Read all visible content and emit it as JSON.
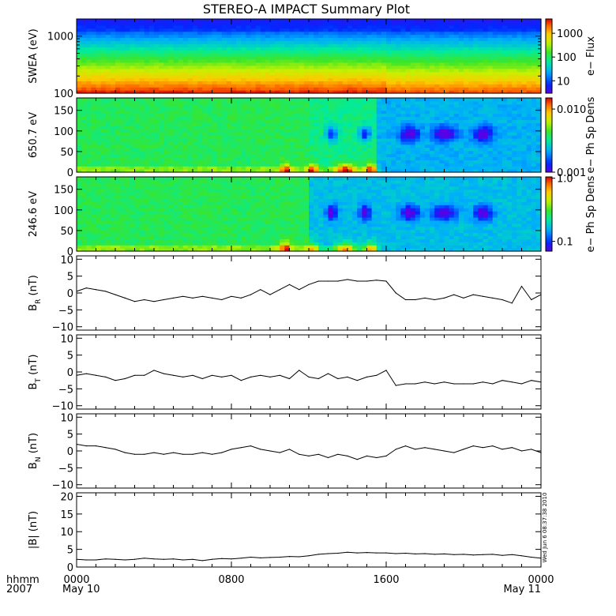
{
  "chart_data": {
    "title": "STEREO-A IMPACT Summary Plot",
    "x_axis": {
      "corner_labels": [
        "hhmm",
        "2007"
      ],
      "tick_hours": [
        0,
        8,
        16,
        24
      ],
      "tick_labels": [
        "0000",
        "0800",
        "1600",
        "0000"
      ],
      "date_labels": [
        "May 10",
        "",
        "",
        "May 11"
      ],
      "range_hours": [
        0,
        24
      ]
    },
    "panels": [
      {
        "id": "swea",
        "type": "heatmap",
        "ylabel": "SWEA (eV)",
        "ylog": true,
        "ylim": [
          100,
          2000
        ],
        "yticks": [
          100,
          1000
        ],
        "ytick_labels": [
          "100",
          "1000"
        ],
        "colorbar": {
          "label": "e−  Flux",
          "log": true,
          "range": [
            3,
            4000
          ],
          "ticks": [
            10,
            100,
            1000
          ],
          "tick_labels": [
            "10",
            "100",
            "1000"
          ]
        },
        "description_values": {
          "energy_ev": [
            100,
            150,
            250,
            400,
            650,
            1000,
            1500,
            2000
          ],
          "flux_profile": [
            3000,
            2000,
            800,
            250,
            90,
            25,
            8,
            5
          ]
        }
      },
      {
        "id": "pad650",
        "type": "heatmap",
        "ylabel": "650.7  eV",
        "ylim": [
          0,
          180
        ],
        "yticks": [
          0,
          50,
          100,
          150
        ],
        "ytick_labels": [
          "0",
          "50",
          "100",
          "150"
        ],
        "colorbar": {
          "label": "e−  Ph Sp Dens",
          "log": true,
          "range": [
            0.001,
            0.015
          ],
          "ticks": [
            0.001,
            0.01
          ],
          "tick_labels": [
            "0.001",
            "0.010"
          ]
        }
      },
      {
        "id": "pad246",
        "type": "heatmap",
        "ylabel": "246.6  eV",
        "ylim": [
          0,
          180
        ],
        "yticks": [
          0,
          50,
          100,
          150
        ],
        "ytick_labels": [
          "0",
          "50",
          "100",
          "150"
        ],
        "colorbar": {
          "label": "e−  Ph Sp Dens",
          "log": true,
          "range": [
            0.07,
            1.05
          ],
          "ticks": [
            0.1,
            1.0
          ],
          "tick_labels": [
            "0.1",
            "1.0"
          ]
        }
      },
      {
        "id": "br",
        "type": "line",
        "ylabel": "B",
        "ylabel_sub": "R",
        "ylabel_unit": " (nT)",
        "ylim": [
          -11,
          11
        ],
        "yticks": [
          -10,
          -5,
          0,
          5,
          10
        ],
        "ytick_labels": [
          "−10",
          "−5",
          "0",
          "5",
          "10"
        ],
        "x": [
          0,
          0.5,
          1,
          1.5,
          2,
          2.5,
          3,
          3.5,
          4,
          4.5,
          5,
          5.5,
          6,
          6.5,
          7,
          7.5,
          8,
          8.5,
          9,
          9.5,
          10,
          10.5,
          11,
          11.5,
          12,
          12.5,
          13,
          13.5,
          14,
          14.5,
          15,
          15.5,
          16,
          16.5,
          17,
          17.5,
          18,
          18.5,
          19,
          19.5,
          20,
          20.5,
          21,
          21.5,
          22,
          22.5,
          23,
          23.5,
          24
        ],
        "y": [
          0.5,
          1.5,
          1.0,
          0.5,
          -0.5,
          -1.5,
          -2.5,
          -2.0,
          -2.5,
          -2.0,
          -1.5,
          -1.0,
          -1.5,
          -1.0,
          -1.5,
          -2.0,
          -1.0,
          -1.5,
          -0.5,
          1.0,
          -0.5,
          1.0,
          2.5,
          1.0,
          2.5,
          3.5,
          3.5,
          3.5,
          4.0,
          3.5,
          3.5,
          3.8,
          3.5,
          0.0,
          -2.0,
          -2.0,
          -1.5,
          -2.0,
          -1.5,
          -0.5,
          -1.5,
          -0.5,
          -1.0,
          -1.5,
          -2.0,
          -3.0,
          2.0,
          -2.0,
          -0.5
        ]
      },
      {
        "id": "bt",
        "type": "line",
        "ylabel": "B",
        "ylabel_sub": "T",
        "ylabel_unit": " (nT)",
        "ylim": [
          -11,
          11
        ],
        "yticks": [
          -10,
          -5,
          0,
          5,
          10
        ],
        "ytick_labels": [
          "−10",
          "−5",
          "0",
          "5",
          "10"
        ],
        "x": [
          0,
          0.5,
          1,
          1.5,
          2,
          2.5,
          3,
          3.5,
          4,
          4.5,
          5,
          5.5,
          6,
          6.5,
          7,
          7.5,
          8,
          8.5,
          9,
          9.5,
          10,
          10.5,
          11,
          11.5,
          12,
          12.5,
          13,
          13.5,
          14,
          14.5,
          15,
          15.5,
          16,
          16.5,
          17,
          17.5,
          18,
          18.5,
          19,
          19.5,
          20,
          20.5,
          21,
          21.5,
          22,
          22.5,
          23,
          23.5,
          24
        ],
        "y": [
          -1.0,
          -0.5,
          -1.0,
          -1.5,
          -2.5,
          -2.0,
          -1.0,
          -1.0,
          0.5,
          -0.5,
          -1.0,
          -1.5,
          -1.0,
          -2.0,
          -1.0,
          -1.5,
          -1.0,
          -2.5,
          -1.5,
          -1.0,
          -1.5,
          -1.0,
          -2.0,
          0.5,
          -1.5,
          -2.0,
          -0.5,
          -2.0,
          -1.5,
          -2.5,
          -1.5,
          -1.0,
          0.5,
          -4.0,
          -3.5,
          -3.5,
          -3.0,
          -3.5,
          -3.0,
          -3.5,
          -3.5,
          -3.5,
          -3.0,
          -3.5,
          -2.5,
          -3.0,
          -3.5,
          -2.5,
          -3.0
        ]
      },
      {
        "id": "bn",
        "type": "line",
        "ylabel": "B",
        "ylabel_sub": "N",
        "ylabel_unit": " (nT)",
        "ylim": [
          -11,
          11
        ],
        "yticks": [
          -10,
          -5,
          0,
          5,
          10
        ],
        "ytick_labels": [
          "−10",
          "−5",
          "0",
          "5",
          "10"
        ],
        "x": [
          0,
          0.5,
          1,
          1.5,
          2,
          2.5,
          3,
          3.5,
          4,
          4.5,
          5,
          5.5,
          6,
          6.5,
          7,
          7.5,
          8,
          8.5,
          9,
          9.5,
          10,
          10.5,
          11,
          11.5,
          12,
          12.5,
          13,
          13.5,
          14,
          14.5,
          15,
          15.5,
          16,
          16.5,
          17,
          17.5,
          18,
          18.5,
          19,
          19.5,
          20,
          20.5,
          21,
          21.5,
          22,
          22.5,
          23,
          23.5,
          24
        ],
        "y": [
          2.0,
          1.5,
          1.5,
          1.0,
          0.5,
          -0.5,
          -1.0,
          -1.0,
          -0.5,
          -1.0,
          -0.5,
          -1.0,
          -1.0,
          -0.5,
          -1.0,
          -0.5,
          0.5,
          1.0,
          1.5,
          0.5,
          0.0,
          -0.5,
          0.5,
          -1.0,
          -1.5,
          -1.0,
          -2.0,
          -1.0,
          -1.5,
          -2.5,
          -1.5,
          -2.0,
          -1.5,
          0.5,
          1.5,
          0.5,
          1.0,
          0.5,
          0.0,
          -0.5,
          0.5,
          1.5,
          1.0,
          1.5,
          0.5,
          1.0,
          0.0,
          0.5,
          -0.5
        ]
      },
      {
        "id": "bmag",
        "type": "line",
        "ylabel": "|B|",
        "ylabel_sub": "",
        "ylabel_unit": " (nT)",
        "ylim": [
          0,
          21
        ],
        "yticks": [
          0,
          5,
          10,
          15,
          20
        ],
        "ytick_labels": [
          "0",
          "5",
          "10",
          "15",
          "20"
        ],
        "side_note": "Wed Jun  6 08:37:38 2010",
        "x": [
          0,
          0.5,
          1,
          1.5,
          2,
          2.5,
          3,
          3.5,
          4,
          4.5,
          5,
          5.5,
          6,
          6.5,
          7,
          7.5,
          8,
          8.5,
          9,
          9.5,
          10,
          10.5,
          11,
          11.5,
          12,
          12.5,
          13,
          13.5,
          14,
          14.5,
          15,
          15.5,
          16,
          16.5,
          17,
          17.5,
          18,
          18.5,
          19,
          19.5,
          20,
          20.5,
          21,
          21.5,
          22,
          22.5,
          23,
          23.5,
          24
        ],
        "y": [
          2.2,
          2.0,
          2.0,
          2.3,
          2.2,
          2.0,
          2.2,
          2.5,
          2.3,
          2.2,
          2.3,
          2.0,
          2.2,
          1.8,
          2.2,
          2.4,
          2.3,
          2.5,
          2.8,
          2.6,
          2.7,
          2.8,
          3.0,
          2.9,
          3.2,
          3.6,
          3.8,
          3.9,
          4.2,
          4.0,
          4.1,
          4.0,
          4.0,
          3.8,
          3.9,
          3.7,
          3.8,
          3.6,
          3.7,
          3.5,
          3.6,
          3.4,
          3.5,
          3.6,
          3.3,
          3.5,
          3.2,
          2.8,
          2.5
        ]
      }
    ]
  }
}
